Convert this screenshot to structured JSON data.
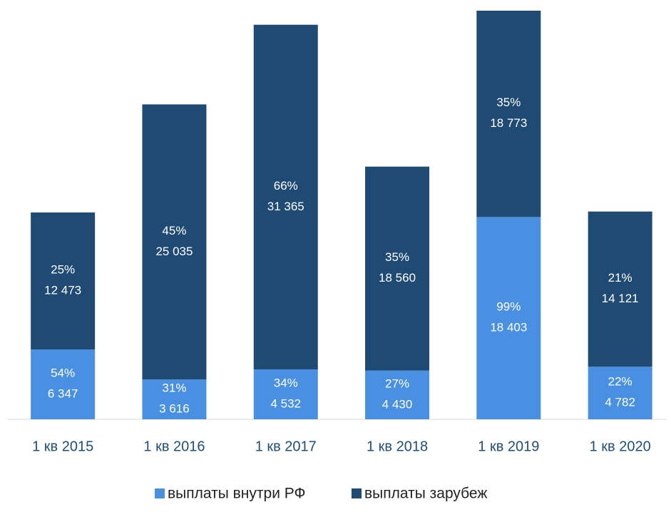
{
  "chart_data": {
    "type": "stacked_bar",
    "categories": [
      "1 кв 2015",
      "1 кв 2016",
      "1 кв 2017",
      "1 кв 2018",
      "1 кв 2019",
      "1 кв 2020"
    ],
    "series": [
      {
        "name": "выплаты внутри РФ",
        "color": "#4a90e2",
        "values": [
          6347,
          3616,
          4532,
          4430,
          18403,
          4782
        ],
        "value_labels": [
          "6 347",
          "3 616",
          "4 532",
          "4 430",
          "18 403",
          "4 782"
        ],
        "percent_labels": [
          "54%",
          "31%",
          "34%",
          "27%",
          "99%",
          "22%"
        ]
      },
      {
        "name": "выплаты зарубеж",
        "color": "#1f4a73",
        "values": [
          12473,
          25035,
          31365,
          18560,
          18773,
          14121
        ],
        "value_labels": [
          "12 473",
          "25 035",
          "31 365",
          "18 560",
          "18 773",
          "14 121"
        ],
        "percent_labels": [
          "25%",
          "45%",
          "66%",
          "35%",
          "35%",
          "21%"
        ]
      }
    ],
    "legend": "bottom"
  }
}
